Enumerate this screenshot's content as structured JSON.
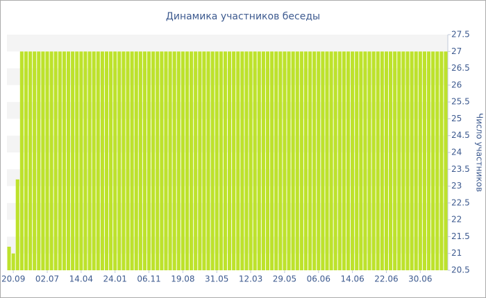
{
  "chart_data": {
    "type": "bar",
    "title": "Динамика участников беседы",
    "y_axis_label": "Число участников",
    "categories": [
      null,
      "20.09",
      null,
      null,
      null,
      null,
      null,
      null,
      null,
      "02.07",
      null,
      null,
      null,
      null,
      null,
      null,
      null,
      "14.04",
      null,
      null,
      null,
      null,
      null,
      null,
      null,
      "24.01",
      null,
      null,
      null,
      null,
      null,
      null,
      null,
      "06.11",
      null,
      null,
      null,
      null,
      null,
      null,
      null,
      "19.08",
      null,
      null,
      null,
      null,
      null,
      null,
      null,
      "31.05",
      null,
      null,
      null,
      null,
      null,
      null,
      null,
      "12.03",
      null,
      null,
      null,
      null,
      null,
      null,
      null,
      "29.05",
      null,
      null,
      null,
      null,
      null,
      null,
      null,
      "06.06",
      null,
      null,
      null,
      null,
      null,
      null,
      null,
      "14.06",
      null,
      null,
      null,
      null,
      null,
      null,
      null,
      "22.06",
      null,
      null,
      null,
      null,
      null,
      null,
      null,
      "30.06",
      null,
      null,
      null,
      null,
      null,
      null
    ],
    "values": [
      21.2,
      21,
      23.2,
      27,
      27,
      27,
      27,
      27,
      27,
      27,
      27,
      27,
      27,
      27,
      27,
      27,
      27,
      27,
      27,
      27,
      27,
      27,
      27,
      27,
      27,
      27,
      27,
      27,
      27,
      27,
      27,
      27,
      27,
      27,
      27,
      27,
      27,
      27,
      27,
      27,
      27,
      27,
      27,
      27,
      27,
      27,
      27,
      27,
      27,
      27,
      27,
      27,
      27,
      27,
      27,
      27,
      27,
      27,
      27,
      27,
      27,
      27,
      27,
      27,
      27,
      27,
      27,
      27,
      27,
      27,
      27,
      27,
      27,
      27,
      27,
      27,
      27,
      27,
      27,
      27,
      27,
      27,
      27,
      27,
      27,
      27,
      27,
      27,
      27,
      27,
      27,
      27,
      27,
      27,
      27,
      27,
      27,
      27,
      27,
      27,
      27,
      27,
      27,
      27
    ],
    "color": "#bde22c",
    "ylim": [
      20.5,
      27.5
    ],
    "yticks": [
      20.5,
      21,
      21.5,
      22,
      22.5,
      23,
      23.5,
      24,
      24.5,
      25,
      25.5,
      26,
      26.5,
      27,
      27.5
    ],
    "y_axis_side": "right",
    "grid": "bands"
  }
}
